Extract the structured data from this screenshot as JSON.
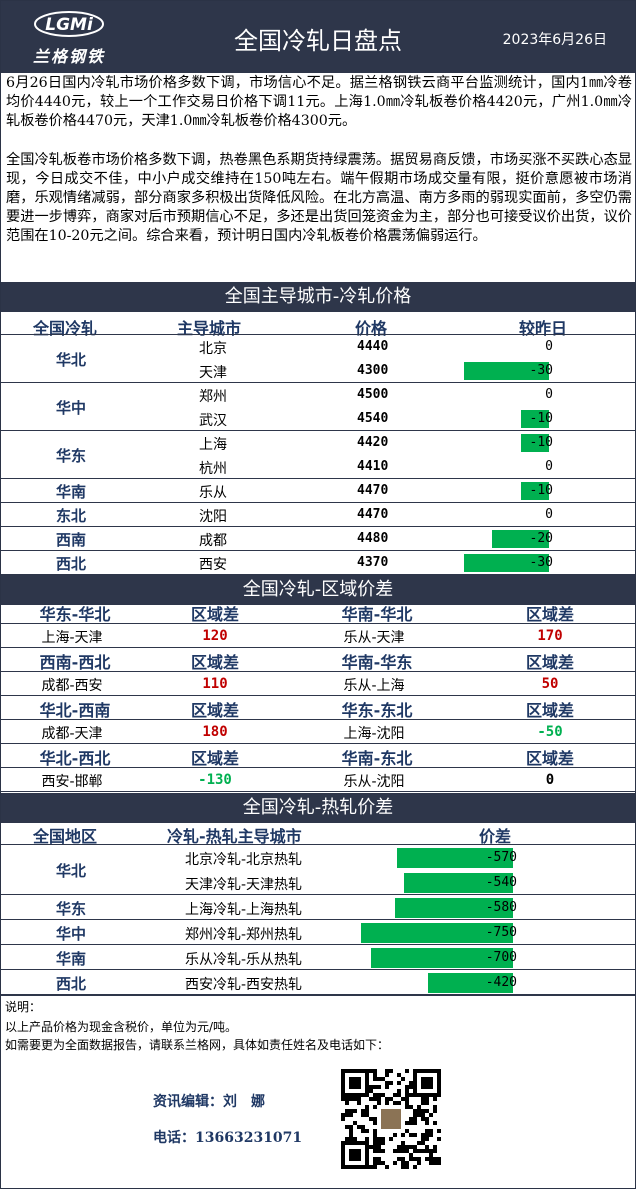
{
  "header": {
    "logo_mark": "LGMi",
    "logo_text": "兰格钢铁",
    "title": "全国冷轧日盘点",
    "date": "2023年6月26日"
  },
  "intro": {
    "p1": "6月26日国内冷轧市场价格多数下调，市场信心不足。据兰格钢铁云商平台监测统计，国内1㎜冷卷均价4440元，较上一个工作交易日价格下调11元。上海1.0㎜冷轧板卷价格4420元，广州1.0㎜冷轧板卷价格4470元，天津1.0㎜冷轧板卷价格4300元。",
    "p2": "全国冷轧板卷市场价格多数下调，热卷黑色系期货持绿震荡。据贸易商反馈，市场买涨不买跌心态显现，今日成交不佳，中小户成交维持在150吨左右。端午假期市场成交量有限，挺价意愿被市场消磨，乐观情绪减弱，部分商家多积极出货降低风险。在北方高温、南方多雨的弱现实面前，多空仍需要进一步博弈，商家对后市预期信心不足，多还是出货回笼资金为主，部分也可接受议价出货，议价范围在10-20元之间。综合来看，预计明日国内冷轧板卷价格震荡偏弱运行。"
  },
  "price_section": {
    "title": "全国主导城市-冷轧价格",
    "headers": [
      "全国冷轧",
      "主导城市",
      "价格",
      "较昨日"
    ],
    "regions": [
      {
        "name": "华北",
        "rows": [
          {
            "city": "北京",
            "price": "4440",
            "change": 0
          },
          {
            "city": "天津",
            "price": "4300",
            "change": -30
          }
        ]
      },
      {
        "name": "华中",
        "rows": [
          {
            "city": "郑州",
            "price": "4500",
            "change": 0
          },
          {
            "city": "武汉",
            "price": "4540",
            "change": -10
          }
        ]
      },
      {
        "name": "华东",
        "rows": [
          {
            "city": "上海",
            "price": "4420",
            "change": -10
          },
          {
            "city": "杭州",
            "price": "4410",
            "change": 0
          }
        ]
      },
      {
        "name": "华南",
        "rows": [
          {
            "city": "乐从",
            "price": "4470",
            "change": -10
          }
        ]
      },
      {
        "name": "东北",
        "rows": [
          {
            "city": "沈阳",
            "price": "4470",
            "change": 0
          }
        ]
      },
      {
        "name": "西南",
        "rows": [
          {
            "city": "成都",
            "price": "4480",
            "change": -20
          }
        ]
      },
      {
        "name": "西北",
        "rows": [
          {
            "city": "西安",
            "price": "4370",
            "change": -30
          }
        ]
      }
    ]
  },
  "region_diff": {
    "title": "全国冷轧-区域价差",
    "diff_label": "区域差",
    "blocks": [
      {
        "left_head": "华东-华北",
        "left_pair": "上海-天津",
        "left_val": "120",
        "left_color": "red",
        "right_head": "华南-华北",
        "right_pair": "乐从-天津",
        "right_val": "170",
        "right_color": "red"
      },
      {
        "left_head": "西南-西北",
        "left_pair": "成都-西安",
        "left_val": "110",
        "left_color": "red",
        "right_head": "华南-华东",
        "right_pair": "乐从-上海",
        "right_val": "50",
        "right_color": "red"
      },
      {
        "left_head": "华北-西南",
        "left_pair": "成都-天津",
        "left_val": "180",
        "left_color": "red",
        "right_head": "华东-东北",
        "right_pair": "上海-沈阳",
        "right_val": "-50",
        "right_color": "green"
      },
      {
        "left_head": "华北-西北",
        "left_pair": "西安-邯郸",
        "left_val": "-130",
        "left_color": "green",
        "right_head": "华南-东北",
        "right_pair": "乐从-沈阳",
        "right_val": "0",
        "right_color": "black"
      }
    ]
  },
  "hot_cold": {
    "title": "全国冷轧-热轧价差",
    "headers": [
      "全国地区",
      "冷轧-热轧主导城市",
      "价差"
    ],
    "regions": [
      {
        "name": "华北",
        "rows": [
          {
            "pair": "北京冷轧-北京热轧",
            "diff": -570
          },
          {
            "pair": "天津冷轧-天津热轧",
            "diff": -540
          }
        ]
      },
      {
        "name": "华东",
        "rows": [
          {
            "pair": "上海冷轧-上海热轧",
            "diff": -580
          }
        ]
      },
      {
        "name": "华中",
        "rows": [
          {
            "pair": "郑州冷轧-郑州热轧",
            "diff": -750
          }
        ]
      },
      {
        "name": "华南",
        "rows": [
          {
            "pair": "乐从冷轧-乐从热轧",
            "diff": -700
          }
        ]
      },
      {
        "name": "西北",
        "rows": [
          {
            "pair": "西安冷轧-西安热轧",
            "diff": -420
          }
        ]
      }
    ]
  },
  "notes": {
    "line1": "说明：",
    "line2": "以上产品价格为现金含税价，单位为元/吨。",
    "line3": "如需要更为全面数据报告，请联系兰格网，具体如责任姓名及电话如下："
  },
  "contact": {
    "editor": "资讯编辑：刘　娜",
    "phone": "电话：13663231071"
  },
  "colors": {
    "header_bg": "#2e364a",
    "bar": "#00b050",
    "up": "#c00000",
    "down": "#00b050",
    "heading": "#1f3864"
  }
}
